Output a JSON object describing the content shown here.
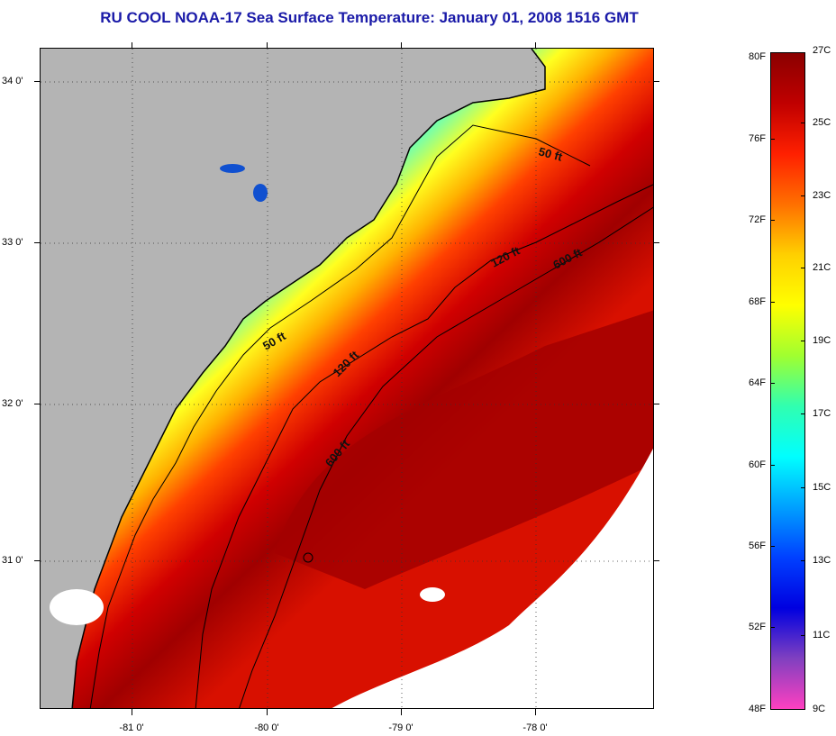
{
  "title": "RU COOL  NOAA-17  Sea Surface Temperature:  January 01, 2008 1516 GMT",
  "map": {
    "lat_labels": [
      "34 0'",
      "33 0'",
      "32 0'",
      "31 0'"
    ],
    "lon_labels": [
      "-81 0'",
      "-80 0'",
      "-79 0'",
      "-78 0'"
    ],
    "contour_labels": [
      "50 ft",
      "120 ft",
      "600 ft",
      "50 ft",
      "120 ft",
      "600 ft"
    ],
    "colors": {
      "land": "#b4b4b4",
      "cloud": "#ffffff",
      "coast": "#000000"
    }
  },
  "colorbar": {
    "f_labels": [
      "80F",
      "76F",
      "72F",
      "68F",
      "64F",
      "60F",
      "56F",
      "52F",
      "48F"
    ],
    "c_labels": [
      "27C",
      "25C",
      "23C",
      "21C",
      "19C",
      "17C",
      "15C",
      "13C",
      "11C",
      "9C"
    ],
    "stops": [
      "#8b0000",
      "#c00000",
      "#ff2000",
      "#ff7000",
      "#ffd000",
      "#ffff00",
      "#a0ff30",
      "#30ffb0",
      "#00ffff",
      "#00a0ff",
      "#0040ff",
      "#0000e0",
      "#8040c0",
      "#ff40c0"
    ]
  }
}
